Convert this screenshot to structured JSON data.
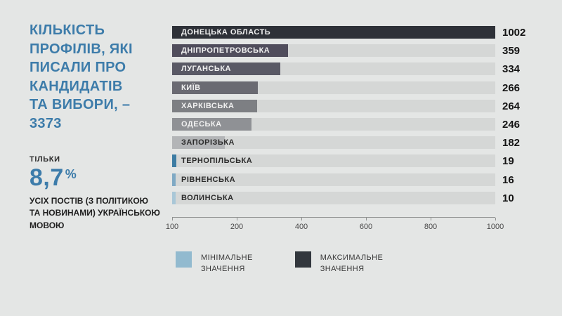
{
  "header": {
    "title": "КІЛЬКІСТЬ\nПРОФІЛІВ, ЯКІ\nПИСАЛИ ПРО\nКАНДИДАТІВ\nТА ВИБОРИ, –\n3373"
  },
  "stat": {
    "kicker": "ТІЛЬКИ",
    "value": "8,7",
    "unit": "%",
    "description": "УСІХ ПОСТІВ (З ПОЛІТИКОЮ\nТА НОВИНАМИ) УКРАЇНСЬКОЮ\nМОВОЮ"
  },
  "chart_data": {
    "type": "bar",
    "orientation": "horizontal",
    "title": "Кількість профілів, які писали про кандидатів та вибори — 3373",
    "total": 3373,
    "categories": [
      "ДОНЕЦЬКА ОБЛАСТЬ",
      "ДНІПРОПЕТРОВСЬКА",
      "ЛУГАНСЬКА",
      "КИЇВ",
      "ХАРКІВСЬКА",
      "ОДЕСЬКА",
      "ЗАПОРІЗЬКА",
      "ТЕРНОПІЛЬСЬКА",
      "РІВНЕНСЬКА",
      "ВОЛИНСЬКА"
    ],
    "values": [
      1002,
      359,
      334,
      266,
      264,
      246,
      182,
      19,
      16,
      10
    ],
    "bar_colors": [
      "#2e3138",
      "#504d5c",
      "#595965",
      "#6a6a72",
      "#7d7f83",
      "#8f9195",
      "#b3b5b7",
      "#3d7ca3",
      "#7fa9c4",
      "#a9c7d7"
    ],
    "x_ticks": [
      "100",
      "200",
      "400",
      "600",
      "800",
      "1000"
    ],
    "x_tick_positions_pct": [
      0,
      20,
      40,
      60,
      80,
      100
    ],
    "xlim": [
      100,
      1000
    ],
    "grid": false,
    "track_color": "#d5d7d6",
    "legend_position": "bottom"
  },
  "legend": {
    "items": [
      {
        "label": "МІНІМАЛЬНЕ\nЗНАЧЕННЯ",
        "color": "#92bacf"
      },
      {
        "label": "МАКСИМАЛЬНЕ\nЗНАЧЕННЯ",
        "color": "#32373d"
      }
    ]
  },
  "colors": {
    "background": "#e4e6e5",
    "accent_blue": "#3d7caa",
    "label_light": "#f1f1f1",
    "label_dark": "#2b2b2b"
  }
}
